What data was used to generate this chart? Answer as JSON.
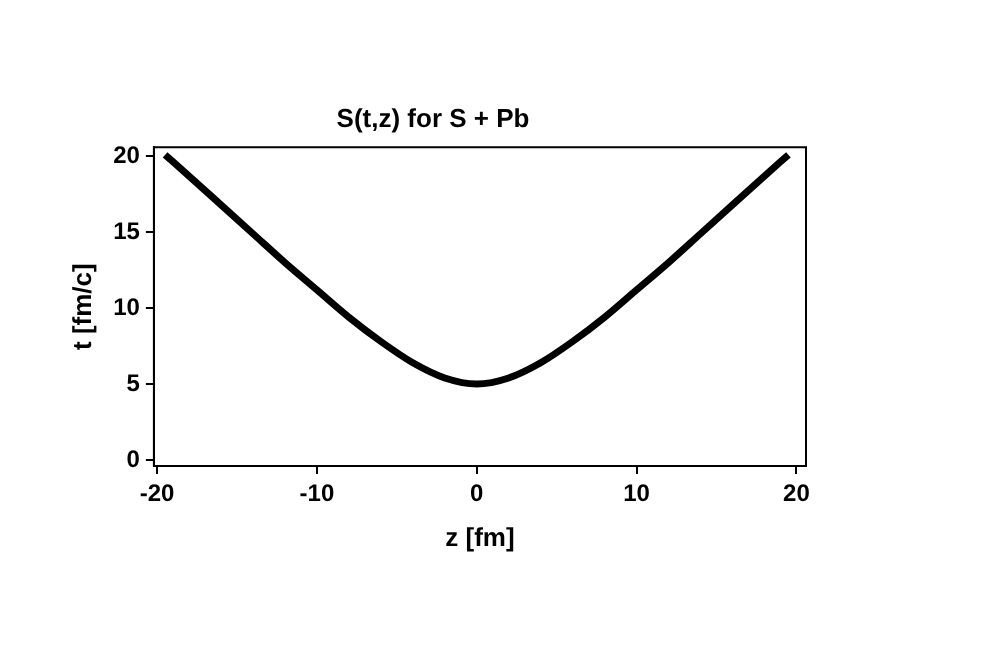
{
  "chart_data": {
    "type": "line",
    "title": "S(t,z) for S + Pb",
    "xlabel": "z [fm]",
    "ylabel": "t [fm/c]",
    "x": [
      -19.5,
      -18,
      -16,
      -14,
      -12,
      -10,
      -8,
      -6,
      -4,
      -2,
      0,
      2,
      4,
      6,
      8,
      10,
      12,
      14,
      16,
      18,
      19.5
    ],
    "series": [
      {
        "color": "#000000",
        "values": [
          20.1,
          18.7,
          16.8,
          14.9,
          13.0,
          11.2,
          9.4,
          7.8,
          6.4,
          5.4,
          5.0,
          5.4,
          6.4,
          7.8,
          9.4,
          11.2,
          13.0,
          14.9,
          16.8,
          18.7,
          20.1
        ]
      }
    ],
    "xlim": [
      -20.2,
      20.6
    ],
    "xticks": [
      -20,
      -10,
      0,
      10,
      20
    ],
    "ylim": [
      -0.4,
      20.6
    ],
    "yticks": [
      0,
      5,
      10,
      15,
      20
    ],
    "grid": false,
    "legend": false,
    "marker": "none",
    "line_style": "solid"
  }
}
